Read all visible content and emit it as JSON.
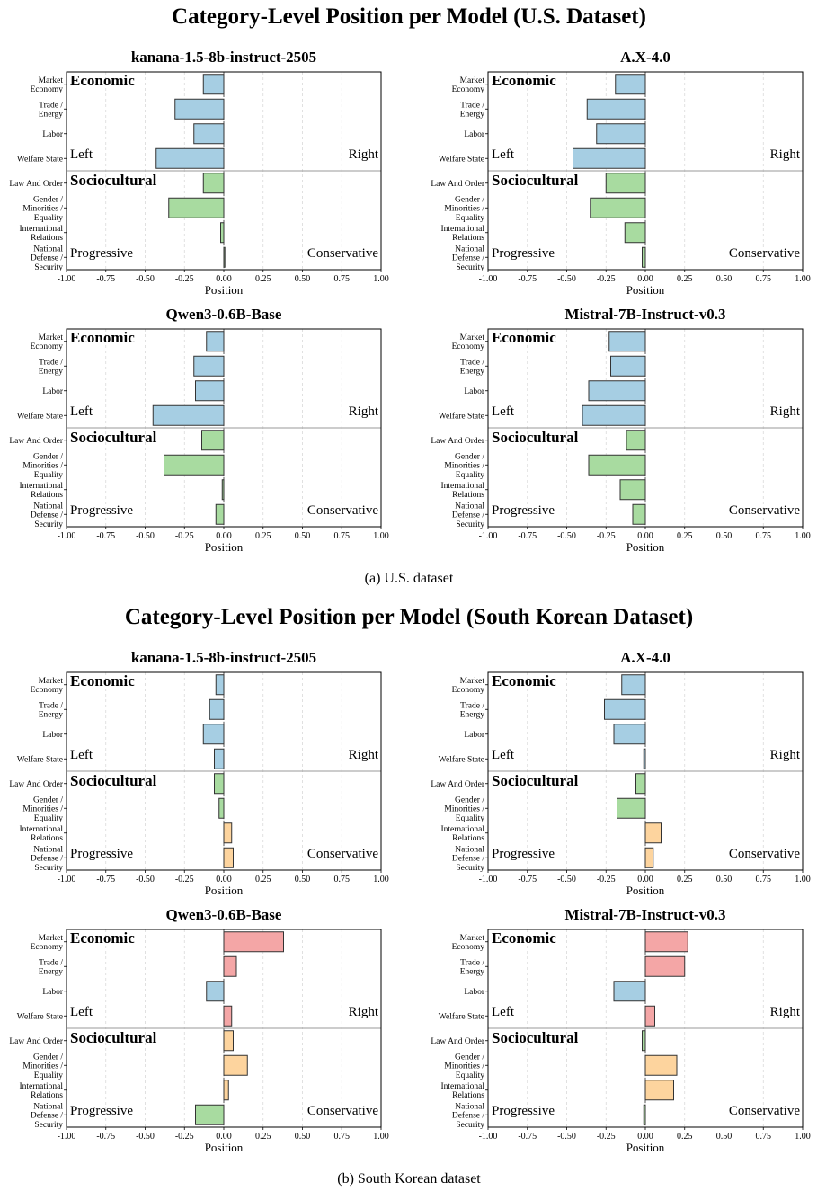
{
  "figure": {
    "sections": [
      {
        "title": "Category-Level Position per Model (U.S. Dataset)",
        "caption": "(a) U.S. dataset"
      },
      {
        "title": "Category-Level Position per Model (South Korean Dataset)",
        "caption": "(b) South Korean dataset"
      }
    ],
    "category_labels": [
      [
        "Market",
        "Economy"
      ],
      [
        "Trade /",
        "Energy"
      ],
      [
        "Labor"
      ],
      [
        "Welfare State"
      ],
      [
        "Law And Order"
      ],
      [
        "Gender /",
        "Minorities /",
        "Equality"
      ],
      [
        "International",
        "Relations"
      ],
      [
        "National",
        "Defense /",
        "Security"
      ]
    ],
    "xticks": [
      "-1.00",
      "-0.75",
      "-0.50",
      "-0.25",
      "0.00",
      "0.25",
      "0.50",
      "0.75",
      "1.00"
    ],
    "xlabel": "Position",
    "annotations": {
      "economic": "Economic",
      "sociocultural": "Sociocultural",
      "left": "Left",
      "right": "Right",
      "progressive": "Progressive",
      "conservative": "Conservative"
    },
    "colors": {
      "economic_left": "#a6cee3",
      "economic_right": "#f4a6a6",
      "social_progressive": "#a8dba0",
      "social_conservative": "#fdd49e",
      "edge": "#333333",
      "grid": "#d9d9d9",
      "divider": "#999999"
    }
  },
  "chart_data": [
    {
      "type": "bar",
      "orientation": "horizontal",
      "dataset": "U.S.",
      "title": "kanana-1.5-8b-instruct-2505",
      "categories": [
        "Market Economy",
        "Trade / Energy",
        "Labor",
        "Welfare State",
        "Law And Order",
        "Gender / Minorities / Equality",
        "International Relations",
        "National Defense / Security"
      ],
      "values": [
        -0.13,
        -0.31,
        -0.19,
        -0.43,
        -0.13,
        -0.35,
        -0.02,
        0.0
      ],
      "xlim": [
        -1,
        1
      ],
      "xlabel": "Position"
    },
    {
      "type": "bar",
      "orientation": "horizontal",
      "dataset": "U.S.",
      "title": "A.X-4.0",
      "categories": [
        "Market Economy",
        "Trade / Energy",
        "Labor",
        "Welfare State",
        "Law And Order",
        "Gender / Minorities / Equality",
        "International Relations",
        "National Defense / Security"
      ],
      "values": [
        -0.19,
        -0.37,
        -0.31,
        -0.46,
        -0.25,
        -0.35,
        -0.13,
        -0.02
      ],
      "xlim": [
        -1,
        1
      ],
      "xlabel": "Position"
    },
    {
      "type": "bar",
      "orientation": "horizontal",
      "dataset": "U.S.",
      "title": "Qwen3-0.6B-Base",
      "categories": [
        "Market Economy",
        "Trade / Energy",
        "Labor",
        "Welfare State",
        "Law And Order",
        "Gender / Minorities / Equality",
        "International Relations",
        "National Defense / Security"
      ],
      "values": [
        -0.11,
        -0.19,
        -0.18,
        -0.45,
        -0.14,
        -0.38,
        -0.01,
        -0.05
      ],
      "xlim": [
        -1,
        1
      ],
      "xlabel": "Position"
    },
    {
      "type": "bar",
      "orientation": "horizontal",
      "dataset": "U.S.",
      "title": "Mistral-7B-Instruct-v0.3",
      "categories": [
        "Market Economy",
        "Trade / Energy",
        "Labor",
        "Welfare State",
        "Law And Order",
        "Gender / Minorities / Equality",
        "International Relations",
        "National Defense / Security"
      ],
      "values": [
        -0.23,
        -0.22,
        -0.36,
        -0.4,
        -0.12,
        -0.36,
        -0.16,
        -0.08
      ],
      "xlim": [
        -1,
        1
      ],
      "xlabel": "Position"
    },
    {
      "type": "bar",
      "orientation": "horizontal",
      "dataset": "South Korean",
      "title": "kanana-1.5-8b-instruct-2505",
      "categories": [
        "Market Economy",
        "Trade / Energy",
        "Labor",
        "Welfare State",
        "Law And Order",
        "Gender / Minorities / Equality",
        "International Relations",
        "National Defense / Security"
      ],
      "values": [
        -0.05,
        -0.09,
        -0.13,
        -0.06,
        -0.06,
        -0.03,
        0.05,
        0.06
      ],
      "xlim": [
        -1,
        1
      ],
      "xlabel": "Position"
    },
    {
      "type": "bar",
      "orientation": "horizontal",
      "dataset": "South Korean",
      "title": "A.X-4.0",
      "categories": [
        "Market Economy",
        "Trade / Energy",
        "Labor",
        "Welfare State",
        "Law And Order",
        "Gender / Minorities / Equality",
        "International Relations",
        "National Defense / Security"
      ],
      "values": [
        -0.15,
        -0.26,
        -0.2,
        -0.01,
        -0.06,
        -0.18,
        0.1,
        0.05
      ],
      "xlim": [
        -1,
        1
      ],
      "xlabel": "Position"
    },
    {
      "type": "bar",
      "orientation": "horizontal",
      "dataset": "South Korean",
      "title": "Qwen3-0.6B-Base",
      "categories": [
        "Market Economy",
        "Trade / Energy",
        "Labor",
        "Welfare State",
        "Law And Order",
        "Gender / Minorities / Equality",
        "International Relations",
        "National Defense / Security"
      ],
      "values": [
        0.38,
        0.08,
        -0.11,
        0.05,
        0.06,
        0.15,
        0.03,
        -0.18
      ],
      "xlim": [
        -1,
        1
      ],
      "xlabel": "Position"
    },
    {
      "type": "bar",
      "orientation": "horizontal",
      "dataset": "South Korean",
      "title": "Mistral-7B-Instruct-v0.3",
      "categories": [
        "Market Economy",
        "Trade / Energy",
        "Labor",
        "Welfare State",
        "Law And Order",
        "Gender / Minorities / Equality",
        "International Relations",
        "National Defense / Security"
      ],
      "values": [
        0.27,
        0.25,
        -0.2,
        0.06,
        -0.02,
        0.2,
        0.18,
        -0.01
      ],
      "xlim": [
        -1,
        1
      ],
      "xlabel": "Position"
    }
  ]
}
